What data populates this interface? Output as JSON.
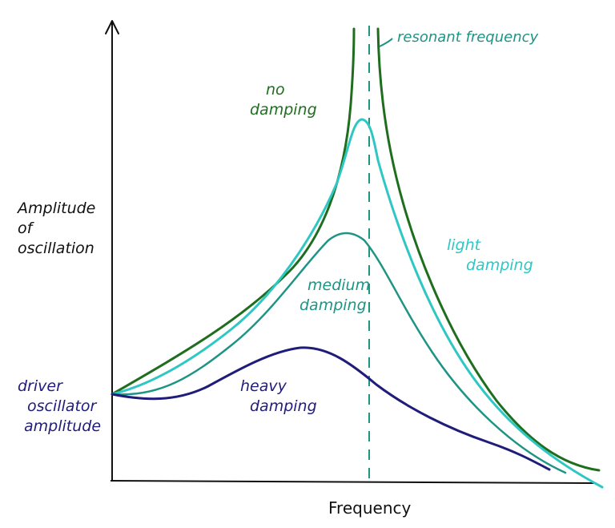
{
  "diagram": {
    "y_axis_label": [
      "Amplitude",
      "of",
      "oscillation"
    ],
    "x_axis_label": "Frequency",
    "driver_label": [
      "driver",
      "oscillator",
      "amplitude"
    ],
    "resonant_label": "resonant frequency",
    "curves": [
      {
        "name": "no damping",
        "lines": [
          "no",
          "damping"
        ],
        "color": "#1f6e1f"
      },
      {
        "name": "light damping",
        "lines": [
          "light",
          "damping"
        ],
        "color": "#2ec7c4"
      },
      {
        "name": "medium damping",
        "lines": [
          "medium",
          "damping"
        ],
        "color": "#1e9484"
      },
      {
        "name": "heavy damping",
        "lines": [
          "heavy",
          "damping"
        ],
        "color": "#1f1c7a"
      }
    ],
    "colors": {
      "axis": "#111111",
      "resonance_line": "#1e9484",
      "driver_label": "#1f1c7a",
      "resonant_label": "#1e9484",
      "no_damping": "#1f6e1f",
      "light_damping": "#2ec7c4",
      "medium_damping": "#1e9484",
      "heavy_damping": "#1f1c7a"
    }
  }
}
